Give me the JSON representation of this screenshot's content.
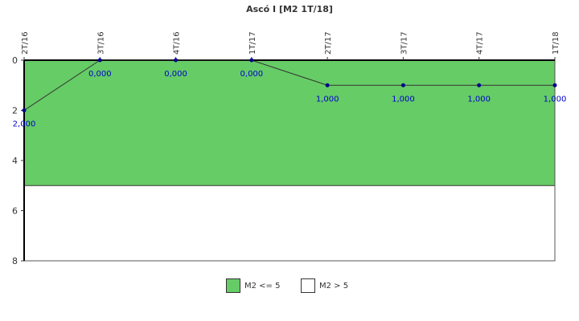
{
  "chart_data": {
    "type": "line",
    "title": "Ascó I [M2 1T/18]",
    "categories": [
      "2T/16",
      "3T/16",
      "4T/16",
      "1T/17",
      "2T/17",
      "3T/17",
      "4T/17",
      "1T/18"
    ],
    "series": [
      {
        "values": [
          2,
          0,
          0,
          0,
          1,
          1,
          1,
          1
        ],
        "labels": [
          "2,000",
          "0,000",
          "0,000",
          "0,000",
          "1,000",
          "1,000",
          "1,000",
          "1,000"
        ],
        "color": "#00008b",
        "label_color": "#0000cc"
      }
    ],
    "y_axis": {
      "min": 0,
      "max": 8,
      "inverted": true,
      "ticks": [
        "0",
        "2",
        "4",
        "6",
        "8"
      ]
    },
    "bands": [
      {
        "name": "M2 <= 5",
        "from": 0,
        "to": 5,
        "color": "#66cc66"
      },
      {
        "name": "M2 > 5",
        "from": 5,
        "to": 8,
        "color": "#ffffff"
      }
    ],
    "grid": false,
    "legend_position": "bottom"
  }
}
